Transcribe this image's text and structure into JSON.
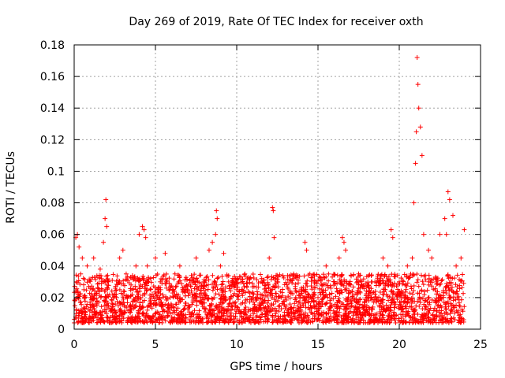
{
  "chart_data": {
    "type": "scatter",
    "title": "Day 269 of 2019, Rate Of TEC Index for receiver oxth",
    "xlabel": "GPS time / hours",
    "ylabel": "ROTI / TECUs",
    "xlim": [
      0,
      25
    ],
    "ylim": [
      0,
      0.18
    ],
    "x_ticks": [
      0,
      5,
      10,
      15,
      20,
      25
    ],
    "y_ticks": [
      0,
      0.02,
      0.04,
      0.06,
      0.08,
      0.1,
      0.12,
      0.14,
      0.16,
      0.18
    ],
    "x_tick_labels": [
      "0",
      "5",
      "10",
      "15",
      "20",
      "25"
    ],
    "y_tick_labels": [
      "0",
      "0.02",
      "0.04",
      "0.06",
      "0.08",
      "0.1",
      "0.12",
      "0.14",
      "0.16",
      "0.18"
    ],
    "grid": true,
    "marker": "+",
    "marker_color": "#ff0000",
    "series": [
      {
        "name": "ROTI",
        "x": [
          0.05,
          0.1,
          0.15,
          0.2,
          0.25,
          0.3,
          0.4,
          0.5,
          0.6,
          0.8,
          1.0,
          1.2,
          1.4,
          1.6,
          1.8,
          1.9,
          1.95,
          2.0,
          2.1,
          2.4,
          2.8,
          3.0,
          3.2,
          3.5,
          3.8,
          4.0,
          4.2,
          4.3,
          4.4,
          4.5,
          4.8,
          5.0,
          5.3,
          5.6,
          5.9,
          6.2,
          6.5,
          7.0,
          7.5,
          8.0,
          8.3,
          8.5,
          8.7,
          8.75,
          8.8,
          9.0,
          9.2,
          9.5,
          10.0,
          10.5,
          11.0,
          11.5,
          12.0,
          12.2,
          12.25,
          12.3,
          12.5,
          13.0,
          13.5,
          14.0,
          14.2,
          14.3,
          14.5,
          15.0,
          15.5,
          16.0,
          16.3,
          16.5,
          16.6,
          16.7,
          17.0,
          17.5,
          18.0,
          18.5,
          19.0,
          19.3,
          19.5,
          19.6,
          20.0,
          20.3,
          20.5,
          20.8,
          20.9,
          21.0,
          21.05,
          21.1,
          21.15,
          21.2,
          21.3,
          21.4,
          21.5,
          21.8,
          22.0,
          22.3,
          22.5,
          22.8,
          22.9,
          23.0,
          23.1,
          23.3,
          23.5,
          23.8,
          24.0
        ],
        "y": [
          0.018,
          0.058,
          0.03,
          0.06,
          0.022,
          0.052,
          0.035,
          0.045,
          0.025,
          0.04,
          0.02,
          0.045,
          0.015,
          0.038,
          0.055,
          0.07,
          0.082,
          0.065,
          0.03,
          0.02,
          0.045,
          0.05,
          0.035,
          0.028,
          0.04,
          0.06,
          0.065,
          0.063,
          0.058,
          0.04,
          0.022,
          0.045,
          0.03,
          0.048,
          0.02,
          0.035,
          0.04,
          0.025,
          0.045,
          0.03,
          0.05,
          0.055,
          0.06,
          0.075,
          0.07,
          0.04,
          0.048,
          0.03,
          0.025,
          0.035,
          0.02,
          0.03,
          0.045,
          0.077,
          0.075,
          0.058,
          0.03,
          0.02,
          0.035,
          0.025,
          0.055,
          0.05,
          0.035,
          0.02,
          0.04,
          0.03,
          0.045,
          0.058,
          0.055,
          0.05,
          0.028,
          0.035,
          0.02,
          0.03,
          0.045,
          0.04,
          0.063,
          0.058,
          0.03,
          0.02,
          0.04,
          0.045,
          0.08,
          0.105,
          0.125,
          0.172,
          0.155,
          0.14,
          0.128,
          0.11,
          0.06,
          0.05,
          0.045,
          0.03,
          0.06,
          0.07,
          0.06,
          0.087,
          0.082,
          0.072,
          0.04,
          0.045,
          0.063
        ]
      }
    ],
    "background_band": {
      "description": "dense points",
      "x_range": [
        0,
        24
      ],
      "y_range": [
        0.004,
        0.035
      ]
    }
  }
}
